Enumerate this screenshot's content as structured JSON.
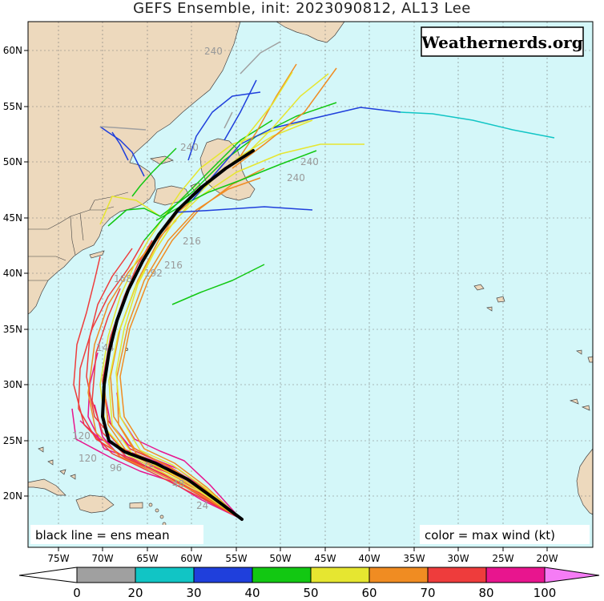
{
  "title": "GEFS Ensemble, init: 2023090812, AL13 Lee",
  "watermark": "Weathernerds.org",
  "notes": {
    "left": "black line = ens mean",
    "right": "color = max wind (kt)"
  },
  "lon_labels": [
    "75W",
    "70W",
    "65W",
    "60W",
    "55W",
    "50W",
    "45W",
    "40W",
    "35W",
    "30W",
    "25W",
    "20W"
  ],
  "lat_labels": [
    "60N",
    "55N",
    "50N",
    "45N",
    "40N",
    "35N",
    "30N",
    "25N",
    "20N"
  ],
  "colorbar": {
    "labels": [
      "0",
      "20",
      "30",
      "40",
      "50",
      "60",
      "70",
      "80",
      "100"
    ],
    "colors": [
      "#ffffff",
      "#a0a0a0",
      "#11c5c5",
      "#1f3fdc",
      "#12c812",
      "#e6e630",
      "#f08c22",
      "#ee3c3c",
      "#e8158e",
      "#f57cf5"
    ]
  },
  "hour_labels": [
    "240",
    "240",
    "240",
    "240",
    "216",
    "216",
    "192",
    "168",
    "144",
    "120",
    "120",
    "96",
    "72",
    "48",
    "24"
  ],
  "colors": {
    "ocean": "#d4f7f9",
    "land": "#edd9bd",
    "mean_track": "#000000"
  }
}
